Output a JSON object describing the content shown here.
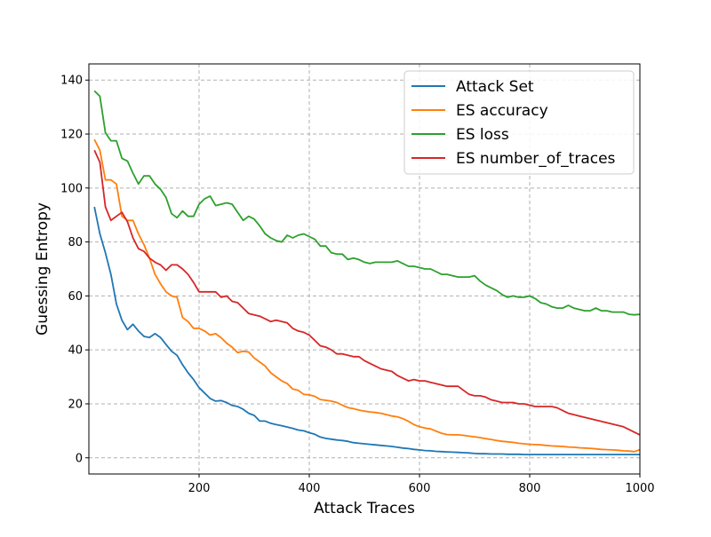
{
  "chart_data": {
    "type": "line",
    "title": "",
    "xlabel": "Attack Traces",
    "ylabel": "Guessing Entropy",
    "xlim": [
      0,
      1000
    ],
    "ylim": [
      -6,
      146
    ],
    "x_ticks": [
      200,
      400,
      600,
      800,
      1000
    ],
    "y_ticks": [
      0,
      20,
      40,
      60,
      80,
      100,
      120,
      140
    ],
    "grid": true,
    "legend_position": "top-right",
    "series": [
      {
        "name": "Attack Set",
        "color": "#1f77b4",
        "x": [
          10,
          20,
          30,
          40,
          50,
          60,
          70,
          80,
          90,
          100,
          110,
          120,
          130,
          140,
          150,
          160,
          170,
          180,
          190,
          200,
          210,
          220,
          230,
          240,
          250,
          260,
          270,
          280,
          290,
          300,
          310,
          320,
          330,
          340,
          350,
          360,
          370,
          380,
          390,
          400,
          410,
          420,
          430,
          440,
          450,
          460,
          470,
          480,
          490,
          500,
          510,
          520,
          530,
          540,
          550,
          560,
          570,
          580,
          590,
          600,
          610,
          620,
          630,
          640,
          650,
          660,
          670,
          680,
          690,
          700,
          710,
          720,
          730,
          740,
          750,
          760,
          770,
          780,
          790,
          800,
          810,
          820,
          830,
          840,
          850,
          860,
          870,
          880,
          890,
          900,
          910,
          920,
          930,
          940,
          950,
          960,
          970,
          980,
          990,
          1000
        ],
        "values": [
          93,
          83,
          76,
          68,
          57,
          51,
          47.5,
          49.5,
          47,
          45,
          44.6,
          46,
          44.6,
          42,
          39.5,
          38,
          34.5,
          31.5,
          29,
          26,
          24,
          22,
          21,
          21.2,
          20.5,
          19.4,
          19,
          18,
          16.5,
          15.7,
          13.6,
          13.6,
          12.8,
          12.3,
          11.9,
          11.4,
          10.9,
          10.3,
          10,
          9.3,
          8.7,
          7.7,
          7.2,
          6.9,
          6.6,
          6.4,
          6.1,
          5.6,
          5.4,
          5.2,
          5.0,
          4.8,
          4.6,
          4.4,
          4.2,
          3.9,
          3.6,
          3.4,
          3.1,
          2.9,
          2.7,
          2.6,
          2.4,
          2.3,
          2.2,
          2.1,
          2.0,
          1.9,
          1.8,
          1.6,
          1.5,
          1.5,
          1.4,
          1.4,
          1.4,
          1.3,
          1.3,
          1.3,
          1.2,
          1.2,
          1.2,
          1.2,
          1.2,
          1.2,
          1.2,
          1.2,
          1.2,
          1.2,
          1.2,
          1.2,
          1.2,
          1.2,
          1.2,
          1.2,
          1.2,
          1.2,
          1.2,
          1.2,
          1.2,
          1.2
        ]
      },
      {
        "name": "ES accuracy",
        "color": "#ff7f0e",
        "x": [
          10,
          20,
          30,
          40,
          50,
          60,
          70,
          80,
          90,
          100,
          110,
          120,
          130,
          140,
          150,
          160,
          170,
          180,
          190,
          200,
          210,
          220,
          230,
          240,
          250,
          260,
          270,
          280,
          290,
          300,
          310,
          320,
          330,
          340,
          350,
          360,
          370,
          380,
          390,
          400,
          410,
          420,
          430,
          440,
          450,
          460,
          470,
          480,
          490,
          500,
          510,
          520,
          530,
          540,
          550,
          560,
          570,
          580,
          590,
          600,
          610,
          620,
          630,
          640,
          650,
          660,
          670,
          680,
          690,
          700,
          710,
          720,
          730,
          740,
          750,
          760,
          770,
          780,
          790,
          800,
          810,
          820,
          830,
          840,
          850,
          860,
          870,
          880,
          890,
          900,
          910,
          920,
          930,
          940,
          950,
          960,
          970,
          980,
          990,
          1000
        ],
        "values": [
          118,
          114,
          103,
          103,
          101.5,
          89.5,
          88,
          88,
          83,
          79,
          74,
          68,
          64.5,
          61.5,
          60,
          59.5,
          52,
          50.5,
          48,
          48,
          47,
          45.5,
          46,
          44.5,
          42.5,
          41,
          39,
          39.5,
          39.2,
          37,
          35.5,
          34,
          31.5,
          30,
          28.5,
          27.5,
          25.5,
          25,
          23.5,
          23.3,
          22.8,
          21.6,
          21.3,
          21,
          20.5,
          19.5,
          18.6,
          18.2,
          17.7,
          17.3,
          17,
          16.8,
          16.5,
          16,
          15.5,
          15.2,
          14.5,
          13.5,
          12.3,
          11.5,
          11,
          10.7,
          9.9,
          9.1,
          8.6,
          8.5,
          8.5,
          8.3,
          8.0,
          7.8,
          7.5,
          7.1,
          6.8,
          6.4,
          6.1,
          5.9,
          5.7,
          5.4,
          5.2,
          5.0,
          4.9,
          4.8,
          4.6,
          4.4,
          4.3,
          4.2,
          4.0,
          3.9,
          3.7,
          3.6,
          3.5,
          3.3,
          3.1,
          3.0,
          2.9,
          2.8,
          2.6,
          2.5,
          2.3,
          3.0
        ]
      },
      {
        "name": "ES loss",
        "color": "#2ca02c",
        "x": [
          10,
          20,
          30,
          40,
          50,
          60,
          70,
          80,
          90,
          100,
          110,
          120,
          130,
          140,
          150,
          160,
          170,
          180,
          190,
          200,
          210,
          220,
          230,
          240,
          250,
          260,
          270,
          280,
          290,
          300,
          310,
          320,
          330,
          340,
          350,
          360,
          370,
          380,
          390,
          400,
          410,
          420,
          430,
          440,
          450,
          460,
          470,
          480,
          490,
          500,
          510,
          520,
          530,
          540,
          550,
          560,
          570,
          580,
          590,
          600,
          610,
          620,
          630,
          640,
          650,
          660,
          670,
          680,
          690,
          700,
          710,
          720,
          730,
          740,
          750,
          760,
          770,
          780,
          790,
          800,
          810,
          820,
          830,
          840,
          850,
          860,
          870,
          880,
          890,
          900,
          910,
          920,
          930,
          940,
          950,
          960,
          970,
          980,
          990,
          1000
        ],
        "values": [
          136,
          134,
          120.5,
          117.5,
          117.5,
          111,
          110,
          105.5,
          101.5,
          104.5,
          104.5,
          101.5,
          99.5,
          96.5,
          90.5,
          89,
          91.5,
          89.5,
          89.5,
          94,
          96,
          97,
          93.5,
          94,
          94.5,
          94,
          91,
          88,
          89.5,
          88.5,
          86,
          83,
          81.5,
          80.5,
          80,
          82.5,
          81.5,
          82.5,
          83,
          82,
          81,
          78.5,
          78.5,
          76,
          75.5,
          75.5,
          73.5,
          74,
          73.5,
          72.5,
          72,
          72.5,
          72.5,
          72.5,
          72.5,
          73,
          72,
          71,
          71,
          70.5,
          70,
          70,
          69,
          68,
          68,
          67.5,
          67,
          67,
          67,
          67.5,
          65.5,
          64,
          63,
          62,
          60.5,
          59.5,
          60,
          59.5,
          59.5,
          60,
          59,
          57.5,
          57,
          56,
          55.5,
          55.5,
          56.5,
          55.5,
          55,
          54.5,
          54.5,
          55.5,
          54.5,
          54.5,
          54,
          54,
          54,
          53.2,
          53,
          53.2
        ]
      },
      {
        "name": "ES number_of_traces",
        "color": "#d62728",
        "x": [
          10,
          20,
          30,
          40,
          50,
          60,
          70,
          80,
          90,
          100,
          110,
          120,
          130,
          140,
          150,
          160,
          170,
          180,
          190,
          200,
          210,
          220,
          230,
          240,
          250,
          260,
          270,
          280,
          290,
          300,
          310,
          320,
          330,
          340,
          350,
          360,
          370,
          380,
          390,
          400,
          410,
          420,
          430,
          440,
          450,
          460,
          470,
          480,
          490,
          500,
          510,
          520,
          530,
          540,
          550,
          560,
          570,
          580,
          590,
          600,
          610,
          620,
          630,
          640,
          650,
          660,
          670,
          680,
          690,
          700,
          710,
          720,
          730,
          740,
          750,
          760,
          770,
          780,
          790,
          800,
          810,
          820,
          830,
          840,
          850,
          860,
          870,
          880,
          890,
          900,
          910,
          920,
          930,
          940,
          950,
          960,
          970,
          980,
          990,
          1000
        ],
        "values": [
          114,
          109.5,
          93,
          88,
          89.5,
          91,
          87.5,
          81.5,
          77.5,
          76.5,
          74,
          72.5,
          71.5,
          69.5,
          71.5,
          71.5,
          70,
          68,
          65,
          61.5,
          61.5,
          61.5,
          61.5,
          59.5,
          60,
          58,
          57.5,
          55.5,
          53.5,
          53,
          52.5,
          51.5,
          50.5,
          51,
          50.5,
          50,
          48,
          47,
          46.5,
          45.5,
          43.5,
          41.5,
          41,
          40,
          38.5,
          38.5,
          38,
          37.5,
          37.5,
          36,
          35,
          34,
          33,
          32.5,
          32,
          30.5,
          29.5,
          28.5,
          29,
          28.5,
          28.5,
          28,
          27.5,
          27,
          26.5,
          26.5,
          26.5,
          25,
          23.5,
          23,
          23,
          22.5,
          21.5,
          21,
          20.5,
          20.5,
          20.5,
          20,
          20,
          19.5,
          19,
          19,
          19,
          19,
          18.5,
          17.5,
          16.5,
          16,
          15.5,
          15,
          14.5,
          14,
          13.5,
          13,
          12.5,
          12,
          11.5,
          10.5,
          9.5,
          8.5
        ]
      }
    ]
  }
}
